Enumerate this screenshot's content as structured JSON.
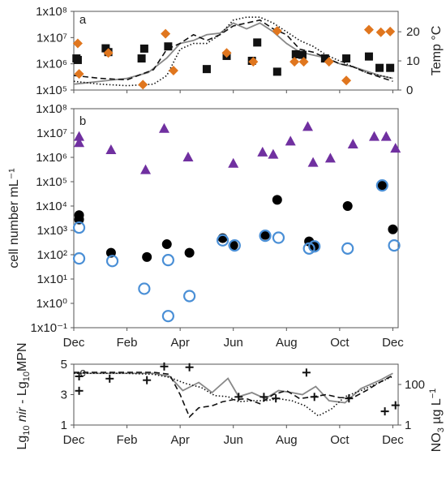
{
  "chart_data": [
    {
      "panel_label": "a",
      "type": "scatter",
      "yticks_left": [
        "1x10⁵",
        "1x10⁶",
        "1x10⁷",
        "1x10⁸"
      ],
      "yticks_right": [
        "0",
        "10",
        "20"
      ],
      "ylabel_right": "Temp °C",
      "ylim_left_log10": [
        5,
        8
      ],
      "ylim_right": [
        0,
        27
      ],
      "series": [
        {
          "marker": "square",
          "color": "#111111",
          "points": [
            {
              "m": 0.1,
              "v": 1600000.0
            },
            {
              "m": 0.15,
              "v": 1400000.0
            },
            {
              "m": 1.2,
              "v": 3900000.0
            },
            {
              "m": 1.3,
              "v": 2800000.0
            },
            {
              "m": 2.55,
              "v": 1600000.0
            },
            {
              "m": 2.65,
              "v": 3800000.0
            },
            {
              "m": 3.55,
              "v": 4600000.0
            },
            {
              "m": 5.0,
              "v": 630000.0
            },
            {
              "m": 5.75,
              "v": 2000000.0
            },
            {
              "m": 6.7,
              "v": 1300000.0
            },
            {
              "m": 6.9,
              "v": 6500000.0
            },
            {
              "m": 7.65,
              "v": 500000.0
            },
            {
              "m": 8.35,
              "v": 2300000.0
            },
            {
              "m": 8.6,
              "v": 2200000.0
            },
            {
              "m": 9.45,
              "v": 1600000.0
            },
            {
              "m": 10.25,
              "v": 1600000.0
            },
            {
              "m": 11.1,
              "v": 1900000.0
            },
            {
              "m": 11.5,
              "v": 700000.0
            },
            {
              "m": 11.9,
              "v": 700000.0
            }
          ]
        },
        {
          "marker": "diamond",
          "color": "#e0761e",
          "points": [
            {
              "m": 0.15,
              "v": 6000000.0
            },
            {
              "m": 0.2,
              "v": 410000.0
            },
            {
              "m": 1.3,
              "v": 2600000.0
            },
            {
              "m": 2.6,
              "v": 160000.0
            },
            {
              "m": 3.45,
              "v": 14000000.0
            },
            {
              "m": 3.75,
              "v": 550000.0
            },
            {
              "m": 5.75,
              "v": 2600000.0
            },
            {
              "m": 6.75,
              "v": 1200000.0
            },
            {
              "m": 7.65,
              "v": 18000000.0
            },
            {
              "m": 8.3,
              "v": 1200000.0
            },
            {
              "m": 8.65,
              "v": 1200000.0
            },
            {
              "m": 9.6,
              "v": 1200000.0
            },
            {
              "m": 10.25,
              "v": 230000.0
            },
            {
              "m": 11.1,
              "v": 20000000.0
            },
            {
              "m": 11.55,
              "v": 16000000.0
            },
            {
              "m": 11.9,
              "v": 17000000.0
            }
          ]
        }
      ],
      "lines_right_axis": [
        {
          "style": "solid",
          "color": "#888888",
          "points": [
            [
              0,
              2
            ],
            [
              1,
              3
            ],
            [
              2,
              4
            ],
            [
              2.8,
              6
            ],
            [
              3.5,
              11
            ],
            [
              4,
              16
            ],
            [
              4.5,
              17
            ],
            [
              5,
              19
            ],
            [
              5.5,
              19.5
            ],
            [
              6,
              23
            ],
            [
              6.5,
              21
            ],
            [
              7,
              23
            ],
            [
              7.5,
              20
            ],
            [
              8,
              16
            ],
            [
              8.5,
              13
            ],
            [
              9,
              12
            ],
            [
              9.5,
              11
            ],
            [
              10,
              9
            ],
            [
              10.5,
              8
            ],
            [
              11,
              6.5
            ],
            [
              11.5,
              5
            ],
            [
              12,
              4
            ]
          ]
        },
        {
          "style": "dashed",
          "color": "#111111",
          "points": [
            [
              0,
              5
            ],
            [
              1,
              4
            ],
            [
              2,
              3.5
            ],
            [
              3,
              7
            ],
            [
              3.5,
              14
            ],
            [
              4,
              16
            ],
            [
              4.5,
              19
            ],
            [
              5,
              17
            ],
            [
              5.5,
              19
            ],
            [
              6,
              22
            ],
            [
              6.5,
              23
            ],
            [
              7,
              24
            ],
            [
              7.5,
              21
            ],
            [
              8,
              19
            ],
            [
              8.5,
              14
            ],
            [
              9,
              13
            ],
            [
              9.5,
              11
            ],
            [
              10,
              9
            ],
            [
              10.5,
              8
            ],
            [
              11,
              6
            ],
            [
              11.5,
              4.5
            ],
            [
              12,
              3
            ]
          ]
        },
        {
          "style": "dotted",
          "color": "#111111",
          "points": [
            [
              0,
              3
            ],
            [
              1,
              2
            ],
            [
              2,
              1.5
            ],
            [
              3,
              2
            ],
            [
              3.5,
              5
            ],
            [
              4,
              14
            ],
            [
              4.5,
              16
            ],
            [
              5,
              16
            ],
            [
              5.5,
              19
            ],
            [
              6,
              24
            ],
            [
              6.5,
              25
            ],
            [
              7,
              25
            ],
            [
              7.5,
              23
            ],
            [
              8,
              20
            ],
            [
              8.5,
              17
            ],
            [
              9,
              15
            ],
            [
              9.5,
              12
            ],
            [
              10,
              10
            ],
            [
              10.5,
              8
            ],
            [
              11,
              6
            ],
            [
              11.5,
              5
            ],
            [
              12,
              4
            ]
          ]
        }
      ]
    },
    {
      "panel_label": "b",
      "type": "scatter",
      "ylabel": "cell number mL⁻¹",
      "yticks": [
        "1x10⁻¹",
        "1x10⁰",
        "1x10¹",
        "1x10²",
        "1x10³",
        "1x10⁴",
        "1x10⁵",
        "1x10⁶",
        "1x10⁷",
        "1x10⁸"
      ],
      "ylim_log10": [
        -1,
        8
      ],
      "xticks": [
        "Dec",
        "Feb",
        "Apr",
        "Jun",
        "Aug",
        "Oct",
        "Dec"
      ],
      "series": [
        {
          "marker": "triangle",
          "color": "#7030a0",
          "points": [
            {
              "m": 0.2,
              "v": 7000000.0
            },
            {
              "m": 0.2,
              "v": 3900000.0
            },
            {
              "m": 1.4,
              "v": 2000000.0
            },
            {
              "m": 2.7,
              "v": 300000.0
            },
            {
              "m": 3.4,
              "v": 15000000.0
            },
            {
              "m": 4.3,
              "v": 1000000.0
            },
            {
              "m": 6.0,
              "v": 550000.0
            },
            {
              "m": 7.1,
              "v": 1600000.0
            },
            {
              "m": 7.5,
              "v": 1300000.0
            },
            {
              "m": 8.15,
              "v": 4500000.0
            },
            {
              "m": 8.8,
              "v": 18000000.0
            },
            {
              "m": 9.0,
              "v": 600000.0
            },
            {
              "m": 9.65,
              "v": 900000.0
            },
            {
              "m": 10.5,
              "v": 3400000.0
            },
            {
              "m": 11.3,
              "v": 7000000.0
            },
            {
              "m": 11.75,
              "v": 7000000.0
            },
            {
              "m": 12.1,
              "v": 2300000.0
            }
          ]
        },
        {
          "marker": "filled-circle",
          "color": "#000000",
          "points": [
            {
              "m": 0.2,
              "v": 4200.0
            },
            {
              "m": 0.2,
              "v": 2800.0
            },
            {
              "m": 1.4,
              "v": 120.0
            },
            {
              "m": 2.75,
              "v": 80.0
            },
            {
              "m": 3.5,
              "v": 270.0
            },
            {
              "m": 4.35,
              "v": 120.0
            },
            {
              "m": 5.6,
              "v": 480.0
            },
            {
              "m": 6.0,
              "v": 240.0
            },
            {
              "m": 7.2,
              "v": 650.0
            },
            {
              "m": 7.65,
              "v": 18000.0
            },
            {
              "m": 8.85,
              "v": 350.0
            },
            {
              "m": 9.05,
              "v": 230.0
            },
            {
              "m": 10.3,
              "v": 10000.0
            },
            {
              "m": 11.6,
              "v": 70000.0
            },
            {
              "m": 12.0,
              "v": 1100.0
            }
          ]
        },
        {
          "marker": "open-circle",
          "color": "#4a8fd6",
          "points": [
            {
              "m": 0.2,
              "v": 1300.0
            },
            {
              "m": 0.2,
              "v": 70.0
            },
            {
              "m": 1.45,
              "v": 55.0
            },
            {
              "m": 2.65,
              "v": 4.0
            },
            {
              "m": 3.55,
              "v": 60.0
            },
            {
              "m": 3.55,
              "v": 0.3
            },
            {
              "m": 4.35,
              "v": 2.0
            },
            {
              "m": 5.6,
              "v": 390.0
            },
            {
              "m": 6.05,
              "v": 240.0
            },
            {
              "m": 7.2,
              "v": 600.0
            },
            {
              "m": 7.7,
              "v": 500.0
            },
            {
              "m": 8.85,
              "v": 180.0
            },
            {
              "m": 9.05,
              "v": 220.0
            },
            {
              "m": 10.3,
              "v": 180.0
            },
            {
              "m": 11.6,
              "v": 70000.0
            },
            {
              "m": 12.05,
              "v": 240.0
            }
          ]
        }
      ]
    },
    {
      "panel_label": "c",
      "type": "line",
      "ylabel": "Lg₁₀ nir - Lg₁₀ MPN",
      "ylabel_parts": [
        "Lg",
        "10",
        " ",
        "nir",
        " - Lg",
        "10",
        "MPN"
      ],
      "ylabel_right": "NO₃ µg L⁻¹",
      "ylabel_right_parts": [
        "NO",
        "3",
        " µg L",
        "−1"
      ],
      "yticks_left": [
        "1",
        "3",
        "5"
      ],
      "yticks_right": [
        "1",
        "100"
      ],
      "ylim_left": [
        1,
        5
      ],
      "ylim_right_log10": [
        0,
        3
      ],
      "xticks": [
        "Dec",
        "Feb",
        "Apr",
        "Jun",
        "Aug",
        "Oct",
        "Dec"
      ],
      "crosses": [
        {
          "m": 0.2,
          "v": 4.2
        },
        {
          "m": 0.2,
          "v": 3.25
        },
        {
          "m": 1.35,
          "v": 4.05
        },
        {
          "m": 2.75,
          "v": 3.95
        },
        {
          "m": 3.4,
          "v": 4.85
        },
        {
          "m": 4.35,
          "v": 4.8
        },
        {
          "m": 6.2,
          "v": 2.85
        },
        {
          "m": 7.15,
          "v": 2.85
        },
        {
          "m": 7.6,
          "v": 2.75
        },
        {
          "m": 8.75,
          "v": 4.45
        },
        {
          "m": 9.05,
          "v": 2.85
        },
        {
          "m": 10.35,
          "v": 2.75
        },
        {
          "m": 11.7,
          "v": 1.9
        },
        {
          "m": 12.1,
          "v": 2.3
        }
      ],
      "lines_right_axis": [
        {
          "style": "solid",
          "color": "#888888",
          "points": [
            [
              0,
              2.55
            ],
            [
              2,
              2.55
            ],
            [
              3,
              2.55
            ],
            [
              3.6,
              2.4
            ],
            [
              4.1,
              1.7
            ],
            [
              4.7,
              2.1
            ],
            [
              5.2,
              1.6
            ],
            [
              5.8,
              2.3
            ],
            [
              6.2,
              1.4
            ],
            [
              6.7,
              1.6
            ],
            [
              7.2,
              1.3
            ],
            [
              7.7,
              1.7
            ],
            [
              8.2,
              1.6
            ],
            [
              8.6,
              1.5
            ],
            [
              9.1,
              1.9
            ],
            [
              9.6,
              1.2
            ],
            [
              10.2,
              1.1
            ],
            [
              10.8,
              1.8
            ],
            [
              11.5,
              2.2
            ],
            [
              12,
              2.55
            ]
          ]
        },
        {
          "style": "dashed",
          "color": "#111111",
          "points": [
            [
              0,
              2.6
            ],
            [
              2,
              2.6
            ],
            [
              3,
              2.6
            ],
            [
              3.6,
              2.5
            ],
            [
              4,
              1.5
            ],
            [
              4.35,
              0.4
            ],
            [
              4.7,
              0.85
            ],
            [
              5.2,
              0.95
            ],
            [
              5.6,
              1.15
            ],
            [
              6,
              1.25
            ],
            [
              6.5,
              1.3
            ],
            [
              7,
              1.05
            ],
            [
              7.5,
              1.5
            ],
            [
              8,
              1.7
            ],
            [
              8.5,
              1.3
            ],
            [
              9,
              1.4
            ],
            [
              9.5,
              1.5
            ],
            [
              10,
              1.35
            ],
            [
              10.5,
              1.35
            ],
            [
              11,
              1.7
            ],
            [
              11.5,
              2.1
            ],
            [
              12,
              2.45
            ]
          ]
        },
        {
          "style": "dotted",
          "color": "#111111",
          "points": [
            [
              0,
              2.55
            ],
            [
              2,
              2.55
            ],
            [
              3,
              2.5
            ],
            [
              3.6,
              2.35
            ],
            [
              4.2,
              2.05
            ],
            [
              4.8,
              1.85
            ],
            [
              5.3,
              1.45
            ],
            [
              5.8,
              1.4
            ],
            [
              6.2,
              1.15
            ],
            [
              6.7,
              1.2
            ],
            [
              7.2,
              1.2
            ],
            [
              7.7,
              1.3
            ],
            [
              8.2,
              1.2
            ],
            [
              8.7,
              0.95
            ],
            [
              9.2,
              0.45
            ],
            [
              9.7,
              0.8
            ],
            [
              10.2,
              1.4
            ],
            [
              10.8,
              1.7
            ],
            [
              11.5,
              2.1
            ],
            [
              12,
              2.4
            ]
          ]
        }
      ]
    }
  ]
}
